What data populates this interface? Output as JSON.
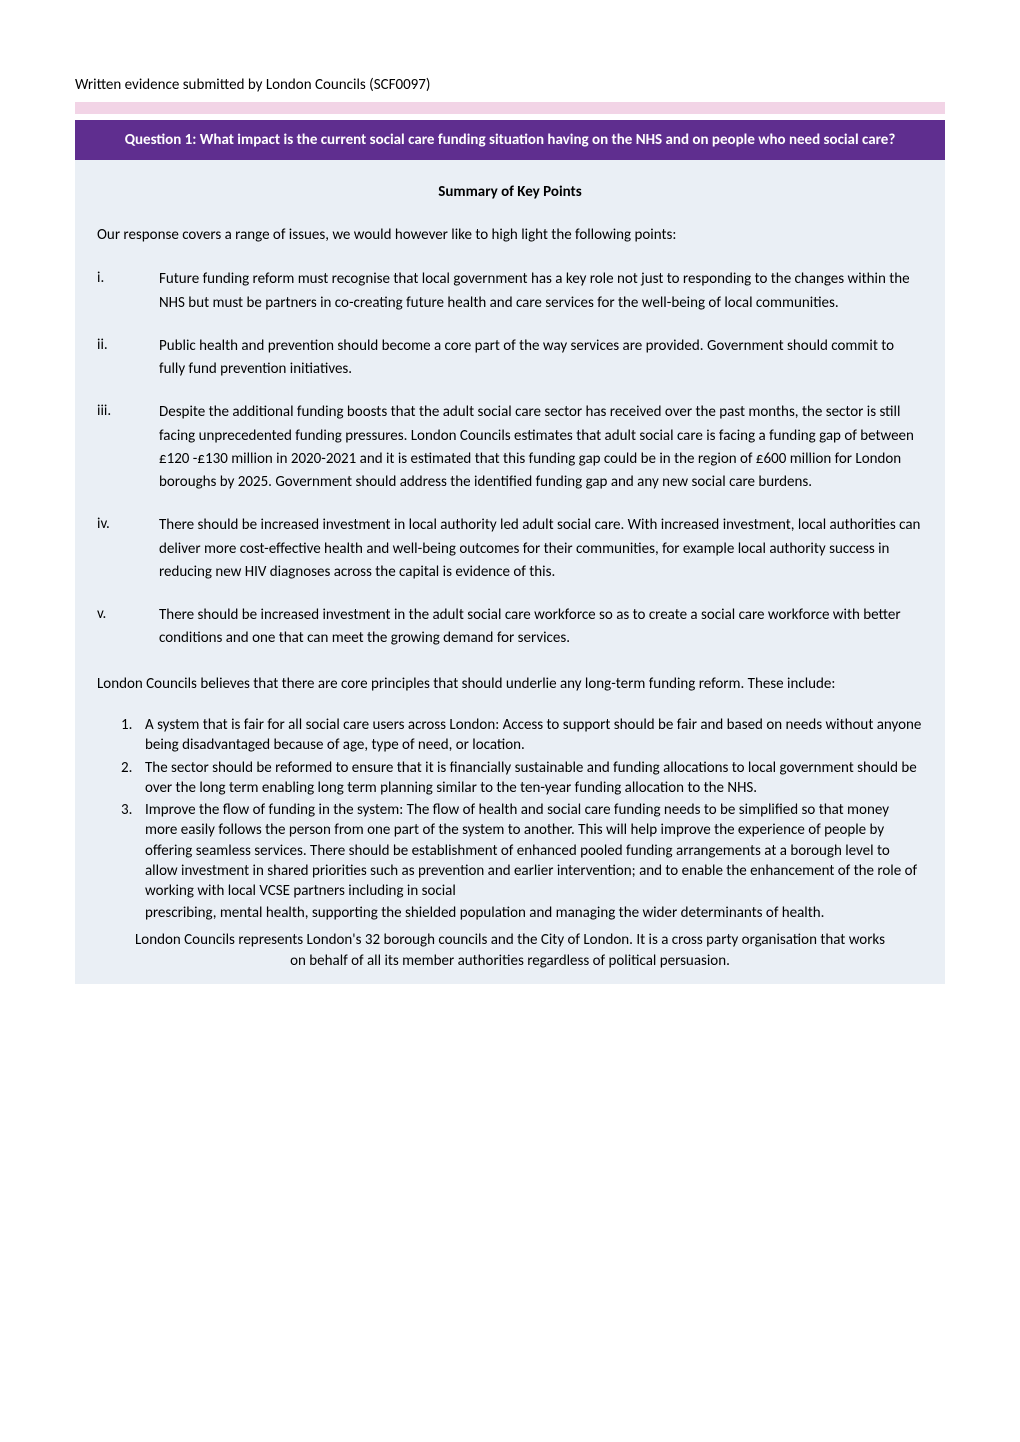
{
  "header": {
    "submittedBy": "Written evidence submitted by London Councils (SCF0097)"
  },
  "questionBar": {
    "text": "Question 1: What impact is the current social care funding situation having on the NHS and on people who need social care?"
  },
  "summary": {
    "heading": "Summary of Key Points",
    "intro": "Our response covers a range of issues, we would however like to high light the following points:",
    "romanItems": [
      {
        "marker": "i.",
        "text": "Future funding reform must recognise that local government has a key role not just to responding to the changes within the NHS but must be partners in co-creating future health and care services for the well-being of local communities."
      },
      {
        "marker": "ii.",
        "text": "Public health and prevention should become a core part of the way services are provided. Government should commit to fully fund prevention initiatives."
      },
      {
        "marker": "iii.",
        "text": "Despite the additional funding boosts that the adult social care sector has received over the past months, the sector is still facing unprecedented funding pressures. London Councils estimates that adult social care is facing a funding gap of between £120 -£130 million in 2020-2021 and it is estimated that this funding gap could be in the region of £600 million for London boroughs by 2025. Government should address the identified funding gap and any new social care burdens."
      },
      {
        "marker": "iv.",
        "text": "There should be increased investment in local authority led adult social care. With increased investment, local authorities can deliver more cost-effective health and well-being outcomes for their communities, for example local authority success in reducing new HIV diagnoses across the capital is evidence of this."
      },
      {
        "marker": "v.",
        "text": "There should be increased investment in the adult social care workforce so as to create a social care workforce with better conditions and one that can meet the growing demand for services."
      }
    ],
    "principlesIntro": "London Councils believes that there are core principles that should underlie any long-term funding reform. These include:",
    "numberedItems": [
      {
        "marker": "1.",
        "text": "A system that is fair for all social care users across London: Access to support should be fair and based on needs without anyone being disadvantaged because of age, type of need, or location."
      },
      {
        "marker": "2.",
        "text": "The sector should be reformed to ensure that it is financially sustainable and funding allocations to local government should be over the long term enabling long term planning similar to the ten-year funding allocation to the NHS."
      },
      {
        "marker": "3.",
        "text": "Improve the flow of funding in the system: The flow of health and social care funding needs to be simplified so that money more easily follows the person from one part of the system to another. This will help improve the experience of people by offering seamless services. There should be establishment of enhanced pooled funding arrangements at a borough level to allow investment in shared priorities such as prevention and earlier intervention; and to enable the enhancement of the role of working with local VCSE partners including in social"
      },
      {
        "marker": "",
        "text": "prescribing, mental health, supporting the shielded population and managing the wider determinants of health."
      }
    ],
    "footer": "London Councils represents London's 32 borough councils and the City of London. It is a cross party organisation that works on behalf of all its member authorities regardless of political persuasion."
  },
  "colors": {
    "pinkBar": "#f2d4e6",
    "purpleBar": "#5f2e8f",
    "contentBg": "#eaeff5",
    "text": "#000000",
    "white": "#ffffff"
  }
}
